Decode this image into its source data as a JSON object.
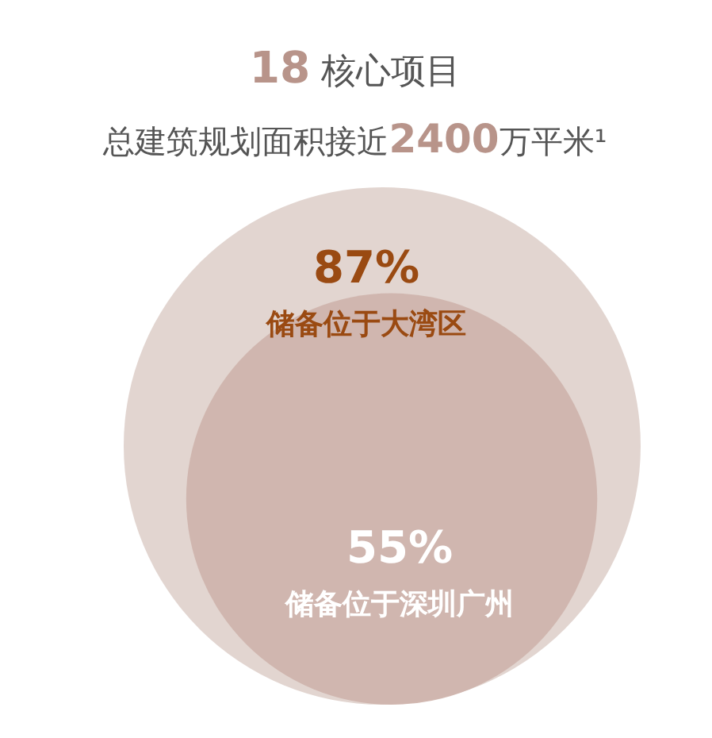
{
  "chart_data": {
    "type": "other",
    "title": "18 核心项目",
    "subtitle": "总建筑规划面积接近2400万平米¹",
    "categories": [
      "储备位于大湾区",
      "储备位于深圳广州"
    ],
    "values": [
      87,
      55
    ],
    "value_labels": [
      "87%",
      "55%"
    ],
    "colors": [
      "#dfd0cb",
      "#ceb3ab"
    ]
  }
}
